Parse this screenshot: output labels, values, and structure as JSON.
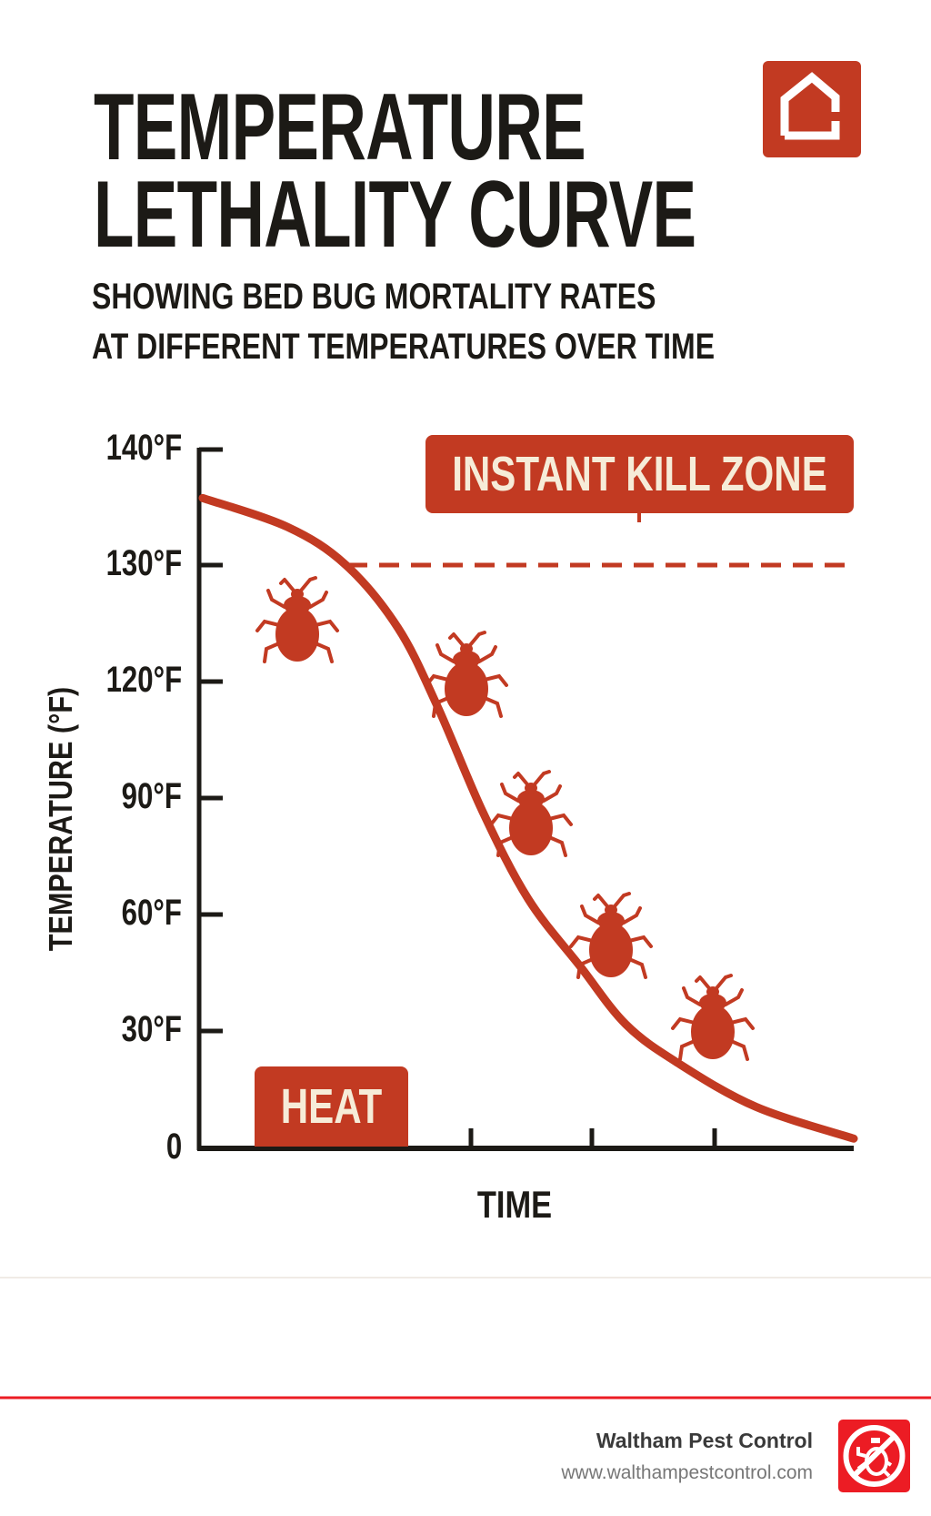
{
  "header": {
    "title_line1": "TEMPERATURE",
    "title_line2": "LETHALITY CURVE",
    "subtitle_line1": "SHOWING BED BUG MORTALITY RATES",
    "subtitle_line2": "AT DIFFERENT TEMPERATURES OVER TIME",
    "logo_icon": "house-icon"
  },
  "chart_data": {
    "type": "line",
    "title": "TEMPERATURE LETHALITY CURVE",
    "xlabel": "TIME",
    "ylabel": "TEMPERATURE (°F)",
    "y_tick_labels": [
      "140°F",
      "130°F",
      "120°F",
      "90°F",
      "60°F",
      "30°F",
      "0"
    ],
    "y_tick_values": [
      140,
      130,
      120,
      90,
      60,
      30,
      0
    ],
    "grid": false,
    "series": [
      {
        "x": [
          0,
          1.3,
          2.2,
          3.0,
          3.6,
          4.3,
          5.0,
          5.8,
          6.5,
          7.3,
          8.5,
          10
        ],
        "y": [
          135.8,
          133.3,
          130,
          124.6,
          113.8,
          86.5,
          64,
          46.6,
          31.7,
          21.8,
          10.6,
          2.5
        ],
        "color": "#c23a22"
      }
    ],
    "threshold": {
      "value": 130,
      "style": "dashed",
      "color": "#c23a22"
    },
    "annotations": {
      "kill_zone": "INSTANT KILL ZONE",
      "heat": "HEAT"
    },
    "decorations": {
      "bug_icon_count": 5,
      "bug_color": "#c23a22"
    }
  },
  "footer": {
    "company": "Waltham Pest Control",
    "url": "www.walthampestcontrol.com",
    "icon": "no-bug-icon",
    "accent": "#ec1c24"
  }
}
